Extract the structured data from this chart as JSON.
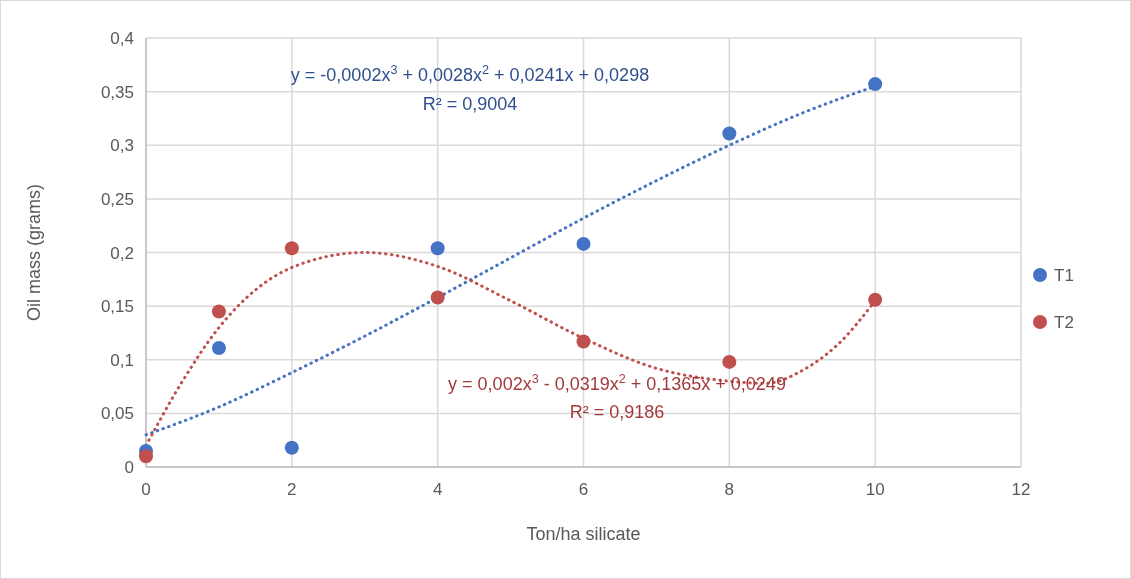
{
  "chart_data": {
    "type": "scatter",
    "xlabel": "Ton/ha silicate",
    "ylabel": "Oil mass (grams)",
    "xlim": [
      0,
      12
    ],
    "xticks": [
      0,
      2,
      4,
      6,
      8,
      10,
      12
    ],
    "ylim": [
      0,
      0.4
    ],
    "yticks": [
      {
        "value": 0,
        "label": "0"
      },
      {
        "value": 0.05,
        "label": "0,05"
      },
      {
        "value": 0.1,
        "label": "0,1"
      },
      {
        "value": 0.15,
        "label": "0,15"
      },
      {
        "value": 0.2,
        "label": "0,2"
      },
      {
        "value": 0.25,
        "label": "0,25"
      },
      {
        "value": 0.3,
        "label": "0,3"
      },
      {
        "value": 0.35,
        "label": "0,35"
      },
      {
        "value": 0.4,
        "label": "0,4"
      }
    ],
    "grid": true,
    "legend": "right",
    "marker": "circle",
    "series": [
      {
        "name": "T1",
        "color": "#4472c4",
        "x": [
          0,
          1,
          2,
          4,
          6,
          8,
          10
        ],
        "values": [
          0.015,
          0.111,
          0.018,
          0.204,
          0.208,
          0.311,
          0.357
        ]
      },
      {
        "name": "T2",
        "color": "#c0504d",
        "x": [
          0,
          1,
          2,
          4,
          6,
          8,
          10
        ],
        "values": [
          0.01,
          0.145,
          0.204,
          0.158,
          0.117,
          0.098,
          0.156
        ]
      },
      {
        "type": "line",
        "color": "#4472c4",
        "line_style": "dotted",
        "marker": "none",
        "x": [
          0,
          1,
          2,
          3,
          4,
          5,
          6,
          7,
          8,
          9,
          10
        ],
        "values": [
          0.03,
          0.056,
          0.088,
          0.122,
          0.158,
          0.195,
          0.232,
          0.267,
          0.3,
          0.33,
          0.355
        ]
      },
      {
        "type": "line",
        "color": "#c0504d",
        "line_style": "dotted",
        "marker": "none",
        "x": [
          0,
          0.5,
          1,
          1.5,
          2,
          3,
          4,
          5,
          6,
          7,
          8,
          8.5,
          9,
          9.5,
          10
        ],
        "values": [
          0.02,
          0.08,
          0.13,
          0.165,
          0.186,
          0.2,
          0.187,
          0.155,
          0.12,
          0.092,
          0.08,
          0.078,
          0.09,
          0.115,
          0.155
        ]
      }
    ],
    "annotations": [
      "y = -0,0002x$^{3}$ + 0,0028x$^{2}$ + 0,0241x + 0,0298",
      "R² = 0,9004",
      "y = 0,002x$^{3}$ - 0,0319x$^{2}$  + 0,1365x + 0,0249",
      "R² = 0,9186"
    ]
  }
}
